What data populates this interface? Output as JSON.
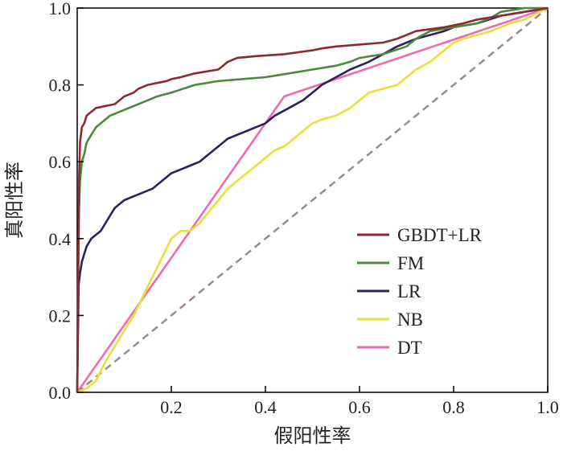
{
  "chart_data": {
    "type": "line",
    "title": "",
    "xlabel": "假阳性率",
    "ylabel": "真阳性率",
    "xlim": [
      0,
      1
    ],
    "ylim": [
      0,
      1
    ],
    "xticks": [
      0.2,
      0.4,
      0.6,
      0.8,
      1.0
    ],
    "xtick_labels": [
      "0.2",
      "0.4",
      "0.6",
      "0.8",
      "1.0"
    ],
    "yticks": [
      0.0,
      0.2,
      0.4,
      0.6,
      0.8,
      1.0
    ],
    "ytick_labels": [
      "0.0",
      "0.2",
      "0.4",
      "0.6",
      "0.8",
      "1.0"
    ],
    "grid": false,
    "legend_position": "lower-right",
    "reference_line": {
      "style": "dashed",
      "color": "#9b8b86",
      "x": [
        0,
        1
      ],
      "y": [
        0,
        1
      ]
    },
    "series": [
      {
        "name": "GBDT+LR",
        "color": "#8b2a33",
        "x": [
          0,
          0.002,
          0.004,
          0.006,
          0.01,
          0.015,
          0.02,
          0.03,
          0.04,
          0.06,
          0.08,
          0.09,
          0.1,
          0.12,
          0.13,
          0.15,
          0.17,
          0.19,
          0.2,
          0.22,
          0.25,
          0.3,
          0.32,
          0.34,
          0.38,
          0.44,
          0.5,
          0.52,
          0.55,
          0.6,
          0.65,
          0.68,
          0.7,
          0.72,
          0.75,
          0.78,
          0.8,
          0.82,
          0.85,
          0.9,
          0.95,
          1.0
        ],
        "y": [
          0,
          0.3,
          0.55,
          0.65,
          0.69,
          0.7,
          0.72,
          0.73,
          0.74,
          0.745,
          0.75,
          0.76,
          0.77,
          0.78,
          0.79,
          0.8,
          0.805,
          0.81,
          0.815,
          0.82,
          0.83,
          0.84,
          0.86,
          0.87,
          0.875,
          0.88,
          0.89,
          0.895,
          0.9,
          0.905,
          0.91,
          0.92,
          0.93,
          0.94,
          0.945,
          0.95,
          0.955,
          0.96,
          0.97,
          0.98,
          0.99,
          1.0
        ]
      },
      {
        "name": "FM",
        "color": "#4a8a3a",
        "x": [
          0,
          0.002,
          0.004,
          0.006,
          0.01,
          0.015,
          0.02,
          0.03,
          0.04,
          0.05,
          0.06,
          0.07,
          0.08,
          0.09,
          0.11,
          0.13,
          0.15,
          0.17,
          0.2,
          0.25,
          0.3,
          0.35,
          0.4,
          0.45,
          0.5,
          0.55,
          0.58,
          0.6,
          0.65,
          0.7,
          0.72,
          0.75,
          0.8,
          0.85,
          0.88,
          0.9,
          0.95,
          1.0
        ],
        "y": [
          0,
          0.3,
          0.48,
          0.55,
          0.6,
          0.62,
          0.65,
          0.67,
          0.69,
          0.7,
          0.71,
          0.72,
          0.725,
          0.73,
          0.74,
          0.75,
          0.76,
          0.77,
          0.78,
          0.8,
          0.81,
          0.815,
          0.82,
          0.83,
          0.84,
          0.85,
          0.86,
          0.87,
          0.88,
          0.9,
          0.92,
          0.94,
          0.95,
          0.96,
          0.975,
          0.99,
          1.0,
          1.0
        ]
      },
      {
        "name": "LR",
        "color": "#2e1f5e",
        "x": [
          0,
          0.003,
          0.006,
          0.01,
          0.015,
          0.02,
          0.03,
          0.04,
          0.05,
          0.06,
          0.07,
          0.08,
          0.09,
          0.1,
          0.12,
          0.14,
          0.16,
          0.18,
          0.2,
          0.22,
          0.24,
          0.26,
          0.28,
          0.3,
          0.32,
          0.34,
          0.36,
          0.38,
          0.4,
          0.42,
          0.45,
          0.48,
          0.5,
          0.52,
          0.55,
          0.58,
          0.6,
          0.62,
          0.65,
          0.68,
          0.7,
          0.72,
          0.75,
          0.78,
          0.8,
          0.85,
          0.9,
          0.95,
          1.0
        ],
        "y": [
          0,
          0.28,
          0.31,
          0.34,
          0.36,
          0.38,
          0.4,
          0.41,
          0.42,
          0.44,
          0.46,
          0.48,
          0.49,
          0.5,
          0.51,
          0.52,
          0.53,
          0.55,
          0.57,
          0.58,
          0.59,
          0.6,
          0.62,
          0.64,
          0.66,
          0.67,
          0.68,
          0.69,
          0.7,
          0.72,
          0.74,
          0.76,
          0.78,
          0.8,
          0.82,
          0.84,
          0.85,
          0.86,
          0.88,
          0.9,
          0.91,
          0.92,
          0.93,
          0.94,
          0.95,
          0.96,
          0.98,
          0.99,
          1.0
        ]
      },
      {
        "name": "NB",
        "color": "#e8e03a",
        "x": [
          0,
          0.02,
          0.04,
          0.06,
          0.08,
          0.1,
          0.12,
          0.14,
          0.16,
          0.18,
          0.2,
          0.22,
          0.24,
          0.26,
          0.28,
          0.3,
          0.32,
          0.34,
          0.36,
          0.38,
          0.4,
          0.42,
          0.44,
          0.46,
          0.48,
          0.5,
          0.52,
          0.55,
          0.58,
          0.6,
          0.62,
          0.65,
          0.68,
          0.7,
          0.72,
          0.75,
          0.78,
          0.8,
          0.82,
          0.85,
          0.88,
          0.9,
          0.92,
          0.95,
          1.0
        ],
        "y": [
          0,
          0.01,
          0.03,
          0.08,
          0.12,
          0.16,
          0.2,
          0.25,
          0.3,
          0.35,
          0.4,
          0.42,
          0.42,
          0.44,
          0.47,
          0.5,
          0.53,
          0.55,
          0.57,
          0.59,
          0.61,
          0.63,
          0.64,
          0.66,
          0.68,
          0.7,
          0.71,
          0.72,
          0.74,
          0.76,
          0.78,
          0.79,
          0.8,
          0.82,
          0.84,
          0.86,
          0.89,
          0.91,
          0.92,
          0.93,
          0.94,
          0.95,
          0.96,
          0.97,
          1.0
        ]
      },
      {
        "name": "DT",
        "color": "#f06aae",
        "x": [
          0,
          0.44,
          1.0
        ],
        "y": [
          0,
          0.77,
          1.0
        ]
      }
    ]
  }
}
